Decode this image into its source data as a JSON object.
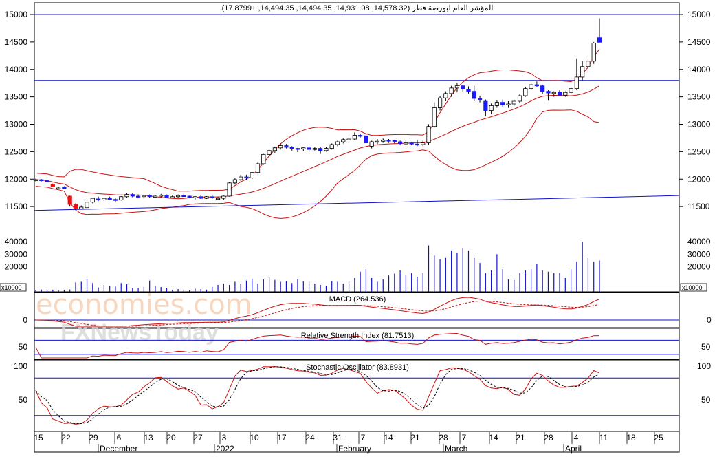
{
  "chart_data": {
    "type": "candlestick",
    "title": "المؤشر العام لبورصة قطر (14,578.32, 14,931.08, 14,494.35, 14,494.35, +17.8799)",
    "volume_unit": "x10000",
    "price_axis": {
      "ylim": [
        11000,
        15000
      ],
      "ticks": [
        15000,
        14500,
        14000,
        13500,
        13000,
        12500,
        12000,
        11500
      ]
    },
    "volume_axis": {
      "ylim": [
        0,
        45000
      ],
      "ticks": [
        40000,
        30000,
        20000
      ]
    },
    "x_ticks": [
      "15",
      "22",
      "29",
      "6",
      "13",
      "20",
      "27",
      "3",
      "10",
      "17",
      "24",
      "31",
      "7",
      "14",
      "21",
      "28",
      "7",
      "14",
      "21",
      "28",
      "4",
      "11",
      "18",
      "25"
    ],
    "month_labels": [
      "December",
      "2022",
      "February",
      "March",
      "April"
    ],
    "horizontal_lines": [
      15000,
      13800
    ],
    "trendline": {
      "start": 11430,
      "end": 11700
    },
    "candles": [
      {
        "o": 11980,
        "h": 12010,
        "l": 11960,
        "c": 11990,
        "v": 1500
      },
      {
        "o": 11990,
        "h": 12000,
        "l": 11960,
        "c": 11970,
        "v": 1800
      },
      {
        "o": 11970,
        "h": 11980,
        "l": 11950,
        "c": 11960,
        "v": 1300
      },
      {
        "o": 11900,
        "h": 11920,
        "l": 11860,
        "c": 11870,
        "v": 1700
      },
      {
        "o": 11840,
        "h": 11860,
        "l": 11820,
        "c": 11840,
        "v": 1400
      },
      {
        "o": 11850,
        "h": 11870,
        "l": 11820,
        "c": 11830,
        "v": 1600
      },
      {
        "o": 11690,
        "h": 11700,
        "l": 11500,
        "c": 11540,
        "v": 1900
      },
      {
        "o": 11540,
        "h": 11560,
        "l": 11440,
        "c": 11470,
        "v": 7500
      },
      {
        "o": 11460,
        "h": 11520,
        "l": 11450,
        "c": 11490,
        "v": 8000
      },
      {
        "o": 11480,
        "h": 11600,
        "l": 11470,
        "c": 11580,
        "v": 10000
      },
      {
        "o": 11580,
        "h": 11660,
        "l": 11560,
        "c": 11650,
        "v": 7000
      },
      {
        "o": 11640,
        "h": 11680,
        "l": 11600,
        "c": 11620,
        "v": 3500
      },
      {
        "o": 11620,
        "h": 11660,
        "l": 11580,
        "c": 11650,
        "v": 5500
      },
      {
        "o": 11650,
        "h": 11680,
        "l": 11620,
        "c": 11630,
        "v": 4500
      },
      {
        "o": 11630,
        "h": 11650,
        "l": 11590,
        "c": 11620,
        "v": 4200
      },
      {
        "o": 11620,
        "h": 11690,
        "l": 11610,
        "c": 11680,
        "v": 7000
      },
      {
        "o": 11680,
        "h": 11750,
        "l": 11660,
        "c": 11720,
        "v": 6000
      },
      {
        "o": 11720,
        "h": 11740,
        "l": 11670,
        "c": 11690,
        "v": 3000
      },
      {
        "o": 11690,
        "h": 11720,
        "l": 11650,
        "c": 11680,
        "v": 3000
      },
      {
        "o": 11680,
        "h": 11710,
        "l": 11650,
        "c": 11700,
        "v": 4000
      },
      {
        "o": 11700,
        "h": 11720,
        "l": 11660,
        "c": 11680,
        "v": 9000
      },
      {
        "o": 11680,
        "h": 11710,
        "l": 11660,
        "c": 11690,
        "v": 4500
      },
      {
        "o": 11690,
        "h": 11730,
        "l": 11670,
        "c": 11710,
        "v": 3800
      },
      {
        "o": 11710,
        "h": 11720,
        "l": 11660,
        "c": 11670,
        "v": 3000
      },
      {
        "o": 11670,
        "h": 11700,
        "l": 11650,
        "c": 11680,
        "v": 1600
      },
      {
        "o": 11680,
        "h": 11720,
        "l": 11660,
        "c": 11700,
        "v": 2200
      },
      {
        "o": 11700,
        "h": 11730,
        "l": 11680,
        "c": 11690,
        "v": 1800
      },
      {
        "o": 11690,
        "h": 11700,
        "l": 11650,
        "c": 11660,
        "v": 1300
      },
      {
        "o": 11660,
        "h": 11690,
        "l": 11630,
        "c": 11680,
        "v": 2500
      },
      {
        "o": 11680,
        "h": 11700,
        "l": 11640,
        "c": 11650,
        "v": 2200
      },
      {
        "o": 11650,
        "h": 11690,
        "l": 11640,
        "c": 11680,
        "v": 1700
      },
      {
        "o": 11680,
        "h": 11700,
        "l": 11640,
        "c": 11660,
        "v": 4000
      },
      {
        "o": 11640,
        "h": 11680,
        "l": 11620,
        "c": 11650,
        "v": 5500
      },
      {
        "o": 11650,
        "h": 11700,
        "l": 11620,
        "c": 11690,
        "v": 6500
      },
      {
        "o": 11690,
        "h": 11950,
        "l": 11680,
        "c": 11930,
        "v": 5500
      },
      {
        "o": 11930,
        "h": 12020,
        "l": 11900,
        "c": 11990,
        "v": 8000
      },
      {
        "o": 11990,
        "h": 12080,
        "l": 11960,
        "c": 12040,
        "v": 6500
      },
      {
        "o": 12040,
        "h": 12080,
        "l": 11990,
        "c": 12020,
        "v": 9000
      },
      {
        "o": 12020,
        "h": 12130,
        "l": 12000,
        "c": 12120,
        "v": 10500
      },
      {
        "o": 12120,
        "h": 12300,
        "l": 12100,
        "c": 12280,
        "v": 6500
      },
      {
        "o": 12280,
        "h": 12460,
        "l": 12260,
        "c": 12450,
        "v": 10000
      },
      {
        "o": 12450,
        "h": 12540,
        "l": 12400,
        "c": 12520,
        "v": 11500
      },
      {
        "o": 12520,
        "h": 12590,
        "l": 12480,
        "c": 12570,
        "v": 9500
      },
      {
        "o": 12570,
        "h": 12650,
        "l": 12540,
        "c": 12610,
        "v": 8000
      },
      {
        "o": 12610,
        "h": 12640,
        "l": 12560,
        "c": 12580,
        "v": 8500
      },
      {
        "o": 12580,
        "h": 12600,
        "l": 12520,
        "c": 12560,
        "v": 7000
      },
      {
        "o": 12560,
        "h": 12570,
        "l": 12490,
        "c": 12550,
        "v": 10000
      },
      {
        "o": 12550,
        "h": 12580,
        "l": 12510,
        "c": 12570,
        "v": 8500
      },
      {
        "o": 12570,
        "h": 12600,
        "l": 12520,
        "c": 12540,
        "v": 8000
      },
      {
        "o": 12540,
        "h": 12580,
        "l": 12520,
        "c": 12560,
        "v": 6500
      },
      {
        "o": 12560,
        "h": 12580,
        "l": 12460,
        "c": 12520,
        "v": 5500
      },
      {
        "o": 12520,
        "h": 12580,
        "l": 12500,
        "c": 12560,
        "v": 4500
      },
      {
        "o": 12560,
        "h": 12650,
        "l": 12540,
        "c": 12630,
        "v": 8500
      },
      {
        "o": 12630,
        "h": 12700,
        "l": 12600,
        "c": 12680,
        "v": 8000
      },
      {
        "o": 12680,
        "h": 12740,
        "l": 12650,
        "c": 12720,
        "v": 6500
      },
      {
        "o": 12720,
        "h": 12760,
        "l": 12690,
        "c": 12730,
        "v": 8000
      },
      {
        "o": 12730,
        "h": 12850,
        "l": 12710,
        "c": 12800,
        "v": 11000
      },
      {
        "o": 12800,
        "h": 12830,
        "l": 12760,
        "c": 12790,
        "v": 16000
      },
      {
        "o": 12790,
        "h": 12810,
        "l": 12650,
        "c": 12660,
        "v": 18000
      },
      {
        "o": 12600,
        "h": 12700,
        "l": 12560,
        "c": 12680,
        "v": 11000
      },
      {
        "o": 12680,
        "h": 12730,
        "l": 12640,
        "c": 12690,
        "v": 8000
      },
      {
        "o": 12690,
        "h": 12740,
        "l": 12660,
        "c": 12710,
        "v": 10000
      },
      {
        "o": 12710,
        "h": 12730,
        "l": 12660,
        "c": 12700,
        "v": 13000
      },
      {
        "o": 12700,
        "h": 12710,
        "l": 12650,
        "c": 12680,
        "v": 14500
      },
      {
        "o": 12680,
        "h": 12700,
        "l": 12620,
        "c": 12650,
        "v": 17000
      },
      {
        "o": 12650,
        "h": 12700,
        "l": 12620,
        "c": 12660,
        "v": 13500
      },
      {
        "o": 12660,
        "h": 12680,
        "l": 12620,
        "c": 12640,
        "v": 15000
      },
      {
        "o": 12640,
        "h": 12720,
        "l": 12600,
        "c": 12630,
        "v": 12000
      },
      {
        "o": 12630,
        "h": 12700,
        "l": 12600,
        "c": 12660,
        "v": 15000
      },
      {
        "o": 12660,
        "h": 13000,
        "l": 12630,
        "c": 12960,
        "v": 37000
      },
      {
        "o": 12960,
        "h": 13400,
        "l": 12940,
        "c": 13300,
        "v": 29000
      },
      {
        "o": 13300,
        "h": 13520,
        "l": 13250,
        "c": 13480,
        "v": 26000
      },
      {
        "o": 13480,
        "h": 13600,
        "l": 13420,
        "c": 13560,
        "v": 27000
      },
      {
        "o": 13560,
        "h": 13700,
        "l": 13500,
        "c": 13660,
        "v": 33000
      },
      {
        "o": 13660,
        "h": 13760,
        "l": 13580,
        "c": 13700,
        "v": 31000
      },
      {
        "o": 13700,
        "h": 13720,
        "l": 13600,
        "c": 13640,
        "v": 35000
      },
      {
        "o": 13640,
        "h": 13690,
        "l": 13560,
        "c": 13600,
        "v": 33000
      },
      {
        "o": 13600,
        "h": 13700,
        "l": 13420,
        "c": 13470,
        "v": 27000
      },
      {
        "o": 13470,
        "h": 13520,
        "l": 13400,
        "c": 13440,
        "v": 23000
      },
      {
        "o": 13420,
        "h": 13450,
        "l": 13150,
        "c": 13250,
        "v": 15000
      },
      {
        "o": 13250,
        "h": 13380,
        "l": 13180,
        "c": 13340,
        "v": 17000
      },
      {
        "o": 13340,
        "h": 13440,
        "l": 13300,
        "c": 13400,
        "v": 30000
      },
      {
        "o": 13400,
        "h": 13450,
        "l": 13320,
        "c": 13350,
        "v": 18000
      },
      {
        "o": 13350,
        "h": 13420,
        "l": 13300,
        "c": 13370,
        "v": 10000
      },
      {
        "o": 13370,
        "h": 13450,
        "l": 13340,
        "c": 13420,
        "v": 9500
      },
      {
        "o": 13420,
        "h": 13550,
        "l": 13390,
        "c": 13520,
        "v": 15000
      },
      {
        "o": 13520,
        "h": 13680,
        "l": 13500,
        "c": 13650,
        "v": 17000
      },
      {
        "o": 13650,
        "h": 13760,
        "l": 13620,
        "c": 13720,
        "v": 18000
      },
      {
        "o": 13720,
        "h": 13780,
        "l": 13680,
        "c": 13700,
        "v": 22000
      },
      {
        "o": 13700,
        "h": 13720,
        "l": 13560,
        "c": 13600,
        "v": 17000
      },
      {
        "o": 13600,
        "h": 13620,
        "l": 13430,
        "c": 13570,
        "v": 16000
      },
      {
        "o": 13560,
        "h": 13600,
        "l": 13500,
        "c": 13580,
        "v": 15000
      },
      {
        "o": 13580,
        "h": 13620,
        "l": 13520,
        "c": 13530,
        "v": 15000
      },
      {
        "o": 13530,
        "h": 13600,
        "l": 13500,
        "c": 13580,
        "v": 11000
      },
      {
        "o": 13580,
        "h": 13680,
        "l": 13550,
        "c": 13650,
        "v": 18000
      },
      {
        "o": 13650,
        "h": 14200,
        "l": 13620,
        "c": 13860,
        "v": 24000
      },
      {
        "o": 13860,
        "h": 14150,
        "l": 13800,
        "c": 14050,
        "v": 40000
      },
      {
        "o": 14050,
        "h": 14200,
        "l": 13940,
        "c": 14150,
        "v": 27000
      },
      {
        "o": 14150,
        "h": 14500,
        "l": 14100,
        "c": 14480,
        "v": 24000
      },
      {
        "o": 14578,
        "h": 14931,
        "l": 14494,
        "c": 14494,
        "v": 25000
      }
    ],
    "indicators": [
      {
        "name": "MACD",
        "value": "MACD (264.536)",
        "zero_label": "0"
      },
      {
        "name": "RSI",
        "value": "Relative Strength Index (81.7513)",
        "tick": "50"
      },
      {
        "name": "Stochastic",
        "value": "Stochastic Oscillator (83.8931)",
        "ticks": [
          "100",
          "50"
        ]
      }
    ]
  },
  "watermark": {
    "line1": "economies.com",
    "line2": "FXNewsToday"
  }
}
